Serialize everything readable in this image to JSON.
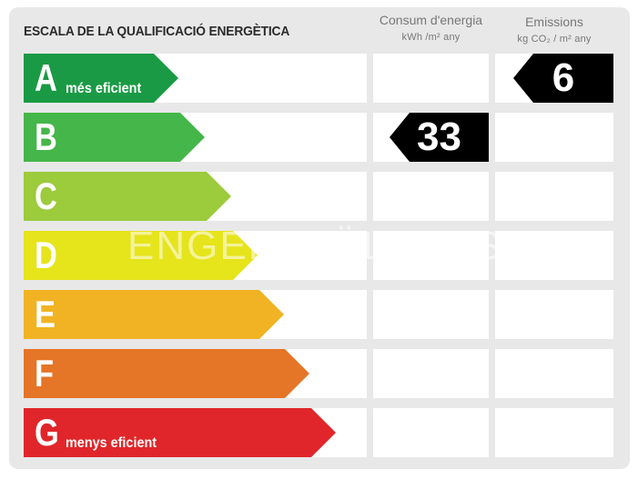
{
  "header": {
    "title": "ESCALA DE LA QUALIFICACIÓ ENERGÈTICA",
    "consumption": {
      "label": "Consum d'energia",
      "unit": "kWh /m² any"
    },
    "emissions": {
      "label": "Emissions",
      "unit": "kg CO₂ / m² any"
    }
  },
  "classes": [
    {
      "letter": "A",
      "sublabel": "més eficient",
      "color": "#1a9a44"
    },
    {
      "letter": "B",
      "sublabel": "",
      "color": "#45b649"
    },
    {
      "letter": "C",
      "sublabel": "",
      "color": "#9ccb3b"
    },
    {
      "letter": "D",
      "sublabel": "",
      "color": "#e6e41b"
    },
    {
      "letter": "E",
      "sublabel": "",
      "color": "#f1b323"
    },
    {
      "letter": "F",
      "sublabel": "",
      "color": "#e57527"
    },
    {
      "letter": "G",
      "sublabel": "menys eficient",
      "color": "#e0262a"
    }
  ],
  "consumption_rating": {
    "class": "B",
    "value": "33"
  },
  "emissions_rating": {
    "class": "A",
    "value": "6"
  },
  "watermark": "ENGEL&VÖLKERS"
}
